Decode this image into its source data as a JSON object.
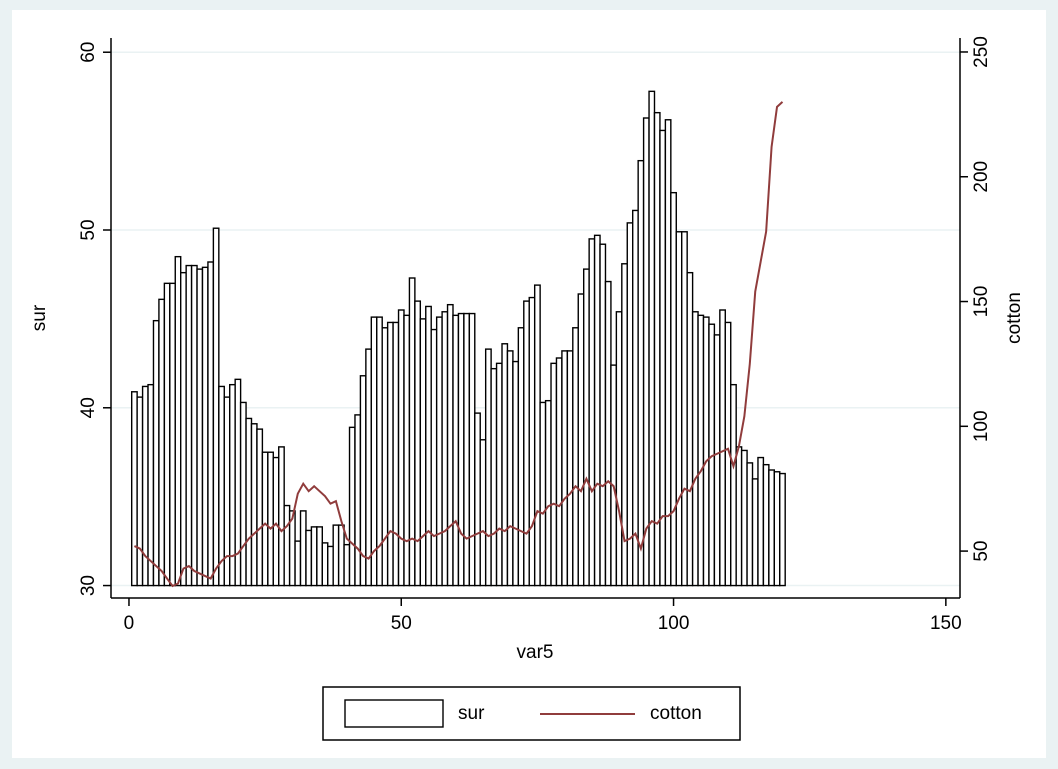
{
  "chart_data": {
    "type": "combo",
    "x": [
      1,
      2,
      3,
      4,
      5,
      6,
      7,
      8,
      9,
      10,
      11,
      12,
      13,
      14,
      15,
      16,
      17,
      18,
      19,
      20,
      21,
      22,
      23,
      24,
      25,
      26,
      27,
      28,
      29,
      30,
      31,
      32,
      33,
      34,
      35,
      36,
      37,
      38,
      39,
      40,
      41,
      42,
      43,
      44,
      45,
      46,
      47,
      48,
      49,
      50,
      51,
      52,
      53,
      54,
      55,
      56,
      57,
      58,
      59,
      60,
      61,
      62,
      63,
      64,
      65,
      66,
      67,
      68,
      69,
      70,
      71,
      72,
      73,
      74,
      75,
      76,
      77,
      78,
      79,
      80,
      81,
      82,
      83,
      84,
      85,
      86,
      87,
      88,
      89,
      90,
      91,
      92,
      93,
      94,
      95,
      96,
      97,
      98,
      99,
      100,
      101,
      102,
      103,
      104,
      105,
      106,
      107,
      108,
      109,
      110,
      111,
      112,
      113,
      114,
      115,
      116,
      117,
      118,
      119,
      120
    ],
    "series": [
      {
        "name": "sur",
        "type": "bar",
        "color": "#ffffff",
        "edgecolor": "#000000",
        "values": [
          40.9,
          40.6,
          41.2,
          41.3,
          44.9,
          46.1,
          47.0,
          47.0,
          48.5,
          47.6,
          48.0,
          48.0,
          47.8,
          47.9,
          48.2,
          50.1,
          41.2,
          40.6,
          41.3,
          41.6,
          40.3,
          39.4,
          39.1,
          38.8,
          37.5,
          37.5,
          37.2,
          37.8,
          34.5,
          34.2,
          32.5,
          34.2,
          33.1,
          33.3,
          33.3,
          32.4,
          32.2,
          33.4,
          33.4,
          32.3,
          38.9,
          39.6,
          41.8,
          43.3,
          45.1,
          45.1,
          44.5,
          44.8,
          44.8,
          45.5,
          45.2,
          47.3,
          46.0,
          45.0,
          45.7,
          44.4,
          45.1,
          45.4,
          45.8,
          45.2,
          45.3,
          45.3,
          45.3,
          39.7,
          38.2,
          43.3,
          42.2,
          42.5,
          43.6,
          43.2,
          42.6,
          44.5,
          46.0,
          46.2,
          46.9,
          40.3,
          40.4,
          42.5,
          42.8,
          43.2,
          43.2,
          44.5,
          46.4,
          47.8,
          49.5,
          49.7,
          49.2,
          47.1,
          42.4,
          45.4,
          48.1,
          50.4,
          51.1,
          53.9,
          56.3,
          57.8,
          56.6,
          55.6,
          56.2,
          52.1,
          49.9,
          49.9,
          47.6,
          45.4,
          45.2,
          45.1,
          44.7,
          44.1,
          45.5,
          44.8,
          41.3,
          37.8,
          37.6,
          36.9,
          36.0,
          37.2,
          36.8,
          36.5,
          36.4,
          36.3
        ]
      },
      {
        "name": "cotton",
        "type": "line",
        "axis": "y2",
        "color": "#903c3c",
        "values": [
          52,
          51,
          48,
          46,
          44,
          42,
          39,
          36,
          37,
          43,
          44,
          42,
          41,
          40,
          39,
          43,
          46,
          48,
          48,
          49,
          52,
          55,
          57,
          59,
          61,
          59,
          61,
          58,
          60,
          63,
          73,
          77,
          74,
          76,
          74,
          72,
          69,
          70,
          62,
          55,
          53,
          51,
          48,
          47,
          50,
          52,
          55,
          58,
          57,
          55,
          54,
          55,
          54,
          56,
          58,
          56,
          57,
          58,
          60,
          62,
          57,
          55,
          56,
          57,
          58,
          56,
          57,
          59,
          58,
          60,
          59,
          58,
          57,
          60,
          66,
          65,
          68,
          69,
          68,
          71,
          73,
          76,
          74,
          79,
          74,
          77,
          76,
          78,
          76,
          66,
          54,
          55,
          57,
          51,
          59,
          62,
          61,
          64,
          64,
          66,
          71,
          75,
          74,
          79,
          82,
          86,
          88,
          89,
          90,
          91,
          84,
          92,
          104,
          125,
          154,
          166,
          178,
          212,
          228,
          230
        ]
      }
    ],
    "xlabel": "var5",
    "ylabel": "sur",
    "y2label": "cotton",
    "xlim": [
      -3.3,
      152.6
    ],
    "xticks": [
      0,
      50,
      100,
      150
    ],
    "ylim": [
      29.3,
      60.8
    ],
    "yticks": [
      30,
      40,
      50,
      60
    ],
    "y2lim": [
      31.2,
      255.6
    ],
    "y2ticks": [
      50,
      100,
      150,
      200,
      250
    ],
    "grid": true,
    "legend": "bottom"
  }
}
